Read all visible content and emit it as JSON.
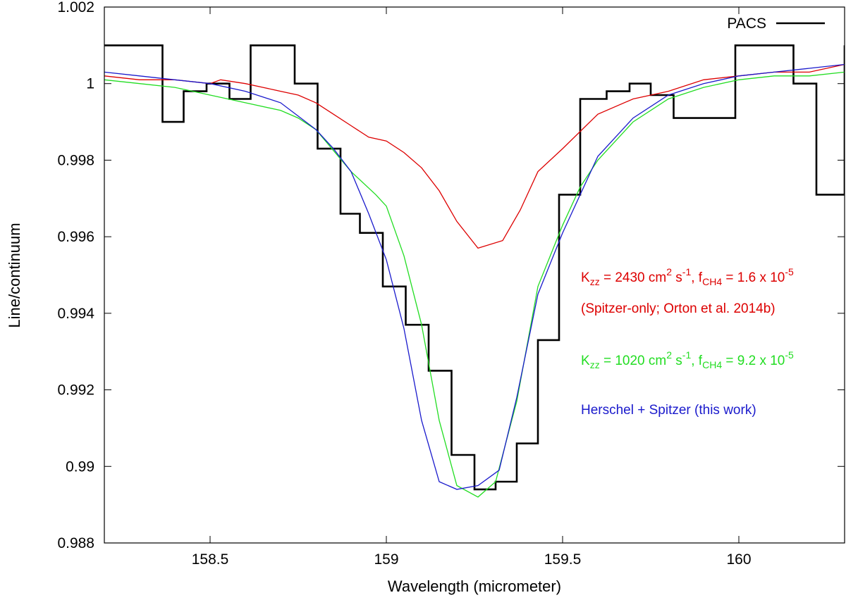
{
  "chart_data": {
    "type": "line",
    "title": "",
    "xlabel": "Wavelength (micrometer)",
    "ylabel": "Line/continuum",
    "xlim": [
      158.2,
      160.3
    ],
    "ylim": [
      0.988,
      1.002
    ],
    "xticks": [
      158.5,
      159,
      159.5,
      160
    ],
    "xtick_labels": [
      "158.5",
      "159",
      "159.5",
      "160"
    ],
    "yticks": [
      0.988,
      0.99,
      0.992,
      0.994,
      0.996,
      0.998,
      1.0,
      1.002
    ],
    "ytick_labels": [
      "0.988",
      "0.99",
      "0.992",
      "0.994",
      "0.996",
      "0.998",
      "1",
      "1.002"
    ],
    "grid": false,
    "legend": {
      "position": "top-right",
      "entries": [
        "PACS"
      ]
    },
    "colors": {
      "pacs": "#000000",
      "spitzer_only": "#dd0000",
      "kzz1020": "#22dd22",
      "herschel_spitzer": "#1a1acc"
    },
    "series": [
      {
        "name": "PACS",
        "style": "step",
        "x": [
          158.2,
          158.365,
          158.425,
          158.49,
          158.555,
          158.615,
          158.74,
          158.805,
          158.87,
          158.925,
          158.99,
          159.055,
          159.12,
          159.185,
          159.25,
          159.31,
          159.37,
          159.43,
          159.49,
          159.55,
          159.625,
          159.69,
          159.75,
          159.815,
          159.99,
          160.155,
          160.22,
          160.3
        ],
        "y": [
          1.001,
          0.999,
          0.9998,
          1.0,
          0.9996,
          1.001,
          1.0,
          0.9983,
          0.9966,
          0.9961,
          0.9947,
          0.9937,
          0.9925,
          0.9903,
          0.9894,
          0.9896,
          0.9906,
          0.9933,
          0.9971,
          0.9996,
          0.9998,
          1.0,
          0.9997,
          0.9991,
          1.001,
          1.0,
          0.9971,
          1.001
        ]
      },
      {
        "name": "",
        "style": "line",
        "x": [
          158.2,
          158.3,
          158.4,
          158.5,
          158.53,
          158.6,
          158.65,
          158.7,
          158.75,
          158.8,
          158.85,
          158.9,
          158.95,
          159.0,
          159.05,
          159.1,
          159.15,
          159.2,
          159.26,
          159.33,
          159.38,
          159.43,
          159.5,
          159.6,
          159.7,
          159.8,
          159.9,
          160.0,
          160.1,
          160.2,
          160.3
        ],
        "y": [
          1.0002,
          1.0001,
          1.0001,
          1.0,
          1.0001,
          1.0,
          0.9999,
          0.9998,
          0.9997,
          0.9995,
          0.9992,
          0.9989,
          0.9986,
          0.9985,
          0.9982,
          0.9978,
          0.9972,
          0.9964,
          0.9957,
          0.9959,
          0.9967,
          0.9977,
          0.9983,
          0.9992,
          0.9996,
          0.9998,
          1.0001,
          1.0002,
          1.0003,
          1.0003,
          1.0005
        ]
      },
      {
        "name": "",
        "style": "line",
        "x": [
          158.2,
          158.3,
          158.4,
          158.5,
          158.6,
          158.7,
          158.75,
          158.8,
          158.9,
          158.97,
          159.0,
          159.05,
          159.1,
          159.15,
          159.2,
          159.26,
          159.31,
          159.37,
          159.43,
          159.5,
          159.55,
          159.6,
          159.7,
          159.8,
          159.9,
          160.0,
          160.1,
          160.2,
          160.3
        ],
        "y": [
          1.0001,
          1.0,
          0.9999,
          0.9997,
          0.9995,
          0.9993,
          0.9991,
          0.9988,
          0.9977,
          0.9971,
          0.9968,
          0.9955,
          0.9937,
          0.9912,
          0.9895,
          0.9892,
          0.9896,
          0.9917,
          0.9947,
          0.9963,
          0.9973,
          0.998,
          0.999,
          0.9996,
          0.9999,
          1.0001,
          1.0002,
          1.0002,
          1.0003
        ]
      },
      {
        "name": "",
        "style": "line",
        "x": [
          158.2,
          158.3,
          158.4,
          158.5,
          158.6,
          158.7,
          158.8,
          158.85,
          158.9,
          158.95,
          159.0,
          159.05,
          159.1,
          159.15,
          159.2,
          159.26,
          159.32,
          159.37,
          159.43,
          159.5,
          159.6,
          159.7,
          159.8,
          159.9,
          160.0,
          160.1,
          160.2,
          160.3
        ],
        "y": [
          1.0003,
          1.0002,
          1.0001,
          1.0,
          0.9998,
          0.9995,
          0.9988,
          0.9983,
          0.9977,
          0.9966,
          0.9954,
          0.9936,
          0.9912,
          0.9896,
          0.9894,
          0.9895,
          0.9899,
          0.9918,
          0.9945,
          0.9961,
          0.9981,
          0.9991,
          0.9997,
          1.0,
          1.0002,
          1.0003,
          1.0004,
          1.0005
        ]
      }
    ],
    "annotations": {
      "spitzer_line1": {
        "k": "K",
        "k_sub": "zz",
        "mid1": " = 2430 cm",
        "sup1": "2",
        "mid2": " s",
        "sup2": "-1",
        "mid3": ", f",
        "f_sub": "CH4",
        "mid4": " = 1.6 x 10",
        "sup3": "-5"
      },
      "spitzer_line2": "(Spitzer-only; Orton et al. 2014b)",
      "kzz1020_line": {
        "k": "K",
        "k_sub": "zz",
        "mid1": " = 1020 cm",
        "sup1": "2",
        "mid2": " s",
        "sup2": "-1",
        "mid3": ", f",
        "f_sub": "CH4",
        "mid4": " = 9.2 x 10",
        "sup3": "-5"
      },
      "herschel_line": "Herschel + Spitzer (this work)"
    }
  }
}
